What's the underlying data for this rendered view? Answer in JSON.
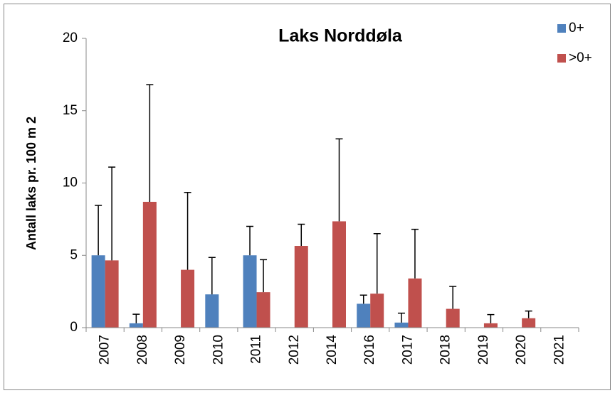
{
  "chart_data": {
    "type": "bar",
    "title": "Laks Norddøla",
    "y_label": "Antall laks pr. 100 m 2",
    "categories": [
      "2007",
      "2008",
      "2009",
      "2010",
      "2011",
      "2012",
      "2014",
      "2016",
      "2017",
      "2018",
      "2019",
      "2020",
      "2021"
    ],
    "series": [
      {
        "name": "0+",
        "color": "#4f81bd",
        "values": [
          5.0,
          0.3,
          0,
          2.3,
          5.0,
          0,
          0,
          1.65,
          0.35,
          0,
          0,
          0,
          0
        ],
        "errors": [
          3.45,
          0.63,
          null,
          2.55,
          2.0,
          null,
          null,
          0.6,
          0.65,
          null,
          null,
          null,
          null
        ]
      },
      {
        "name": ">0+",
        "color": "#c0504d",
        "values": [
          4.65,
          8.7,
          4.0,
          0,
          2.45,
          5.65,
          7.35,
          2.35,
          3.4,
          1.3,
          0.3,
          0.65,
          0
        ],
        "errors": [
          6.45,
          8.1,
          5.35,
          null,
          2.25,
          1.5,
          5.7,
          4.15,
          3.4,
          1.55,
          0.6,
          0.5,
          null
        ]
      }
    ],
    "ylim": [
      0,
      20
    ],
    "yticks": [
      0,
      5,
      10,
      15,
      20
    ],
    "legend": "top-right"
  }
}
